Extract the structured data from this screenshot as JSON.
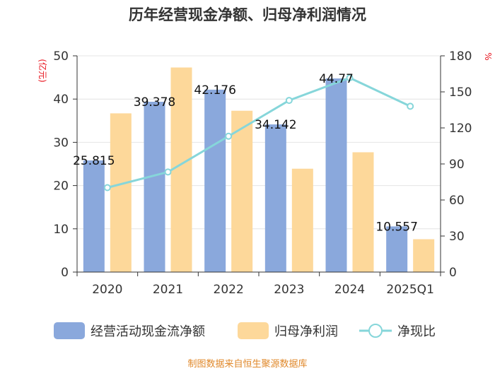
{
  "chart_data": {
    "type": "bar+line",
    "title": "历年经营现金净额、归母净利润情况",
    "categories": [
      "2020",
      "2021",
      "2022",
      "2023",
      "2024",
      "2025Q1"
    ],
    "series": [
      {
        "name": "经营活动现金流净额",
        "type": "bar",
        "axis": "left",
        "color": "#8aa8dc",
        "values": [
          25.815,
          39.378,
          42.176,
          34.142,
          44.77,
          10.557
        ],
        "labels": [
          "25.815",
          "39.378",
          "42.176",
          "34.142",
          "44.77",
          "10.557"
        ]
      },
      {
        "name": "归母净利润",
        "type": "bar",
        "axis": "left",
        "color": "#fdd89a",
        "values": [
          36.7,
          47.3,
          37.3,
          23.9,
          27.7,
          7.6
        ]
      },
      {
        "name": "净现比",
        "type": "line",
        "axis": "right",
        "color": "#86d6da",
        "values": [
          70.3,
          83.3,
          113.1,
          142.9,
          161.7,
          138.0
        ]
      }
    ],
    "left_axis": {
      "unit": "(亿元)",
      "min": 0,
      "max": 50,
      "ticks": [
        0,
        10,
        20,
        30,
        40,
        50
      ]
    },
    "right_axis": {
      "unit": "%",
      "min": 0,
      "max": 180,
      "ticks": [
        0,
        30,
        60,
        90,
        120,
        150,
        180
      ]
    },
    "grid": true,
    "legend_position": "bottom"
  },
  "footer": "制图数据来自恒生聚源数据库"
}
